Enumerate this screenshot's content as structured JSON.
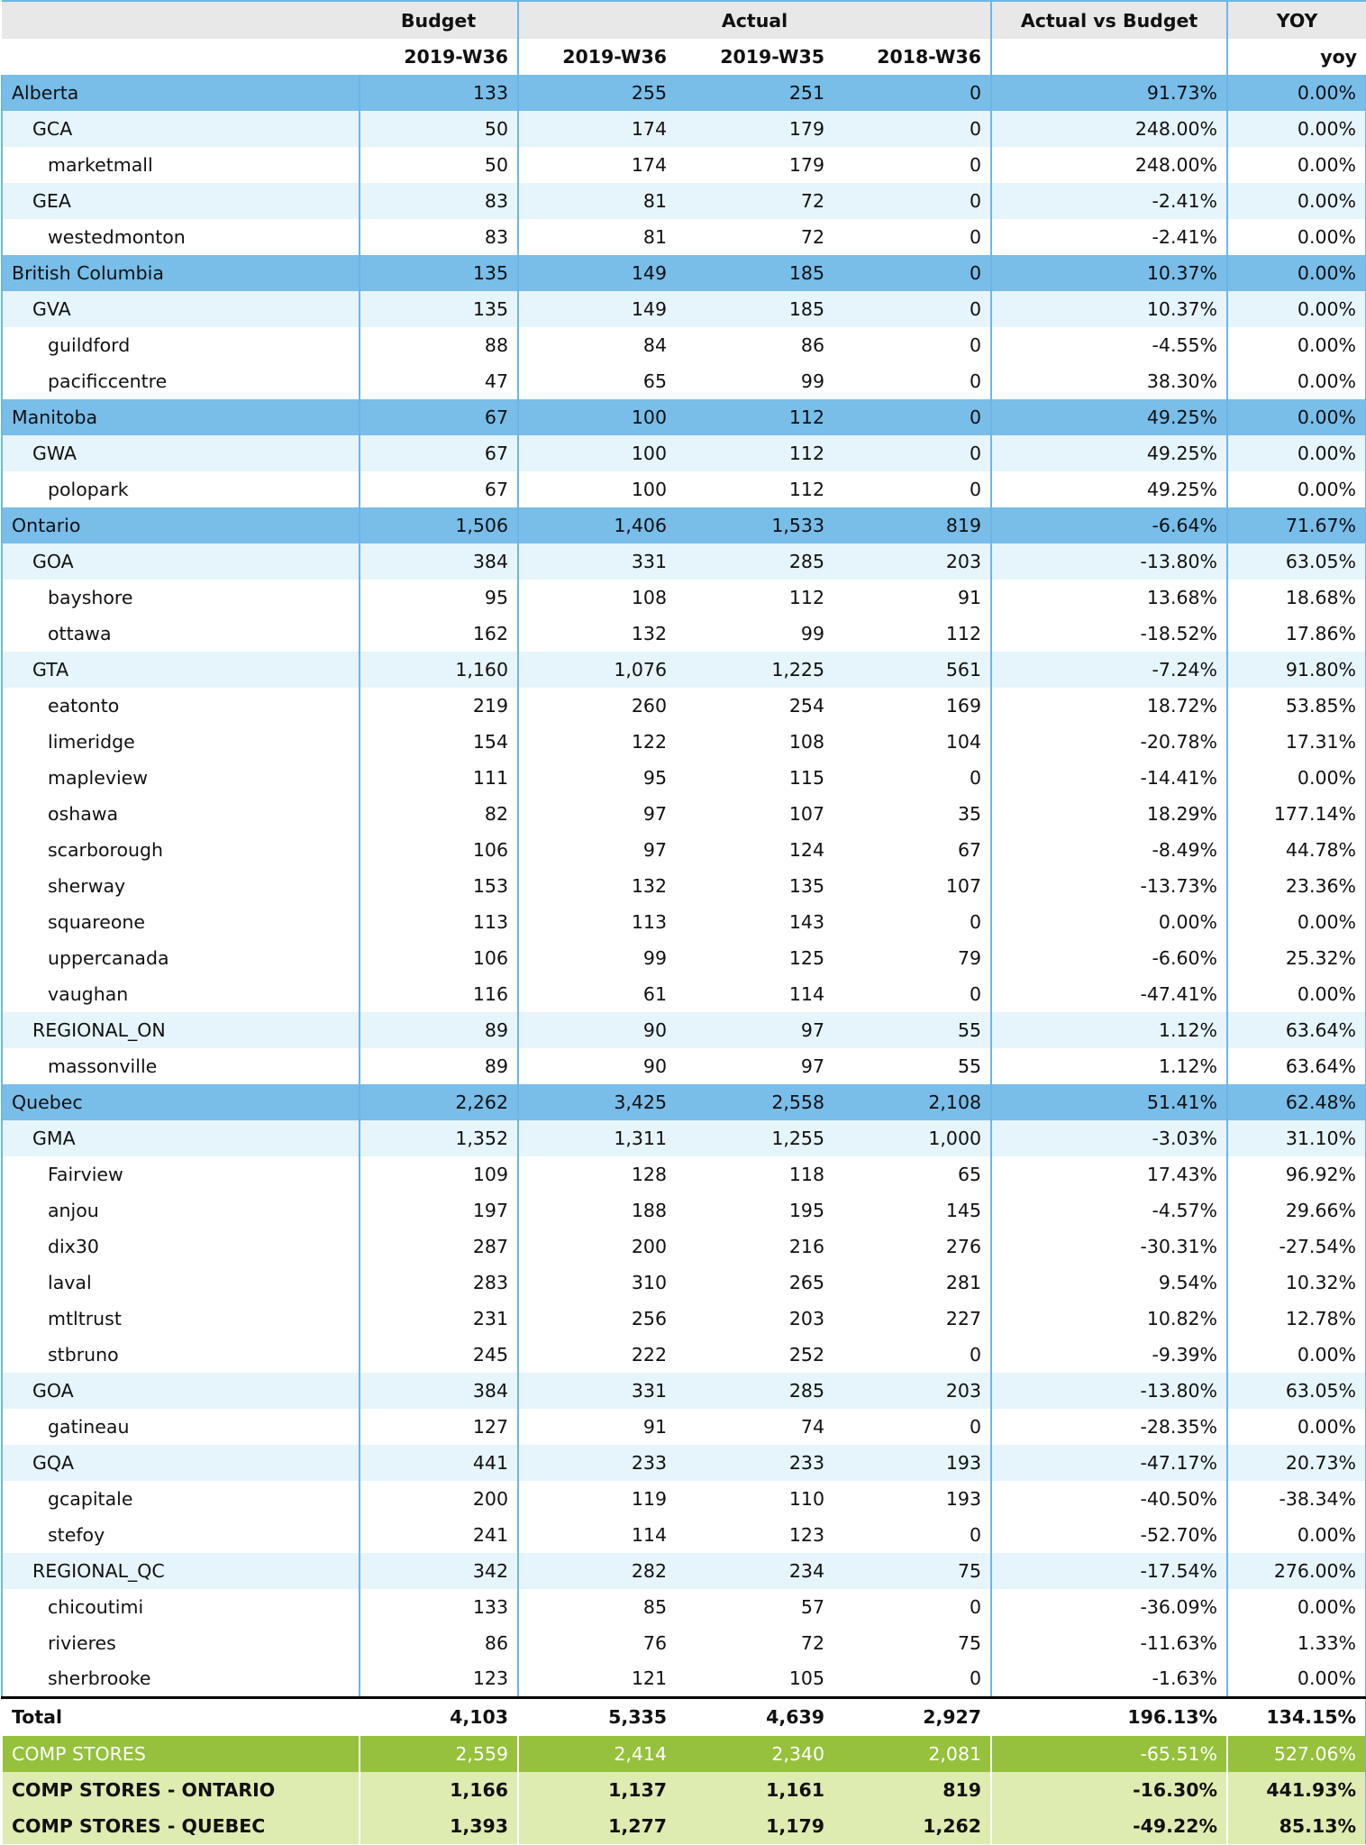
{
  "header": {
    "groups": [
      "",
      "Budget",
      "Actual",
      "Actual vs Budget",
      "YOY"
    ],
    "subheaders": [
      "",
      "2019-W36",
      "2019-W36",
      "2019-W35",
      "2018-W36",
      "",
      "yoy"
    ]
  },
  "rows": [
    {
      "level": "province",
      "name": "Alberta",
      "budget": "133",
      "w36": "255",
      "w35": "251",
      "ly": "0",
      "avb": "91.73%",
      "yoy": "0.00%"
    },
    {
      "level": "region",
      "name": "GCA",
      "budget": "50",
      "w36": "174",
      "w35": "179",
      "ly": "0",
      "avb": "248.00%",
      "yoy": "0.00%"
    },
    {
      "level": "store",
      "name": "marketmall",
      "budget": "50",
      "w36": "174",
      "w35": "179",
      "ly": "0",
      "avb": "248.00%",
      "yoy": "0.00%"
    },
    {
      "level": "region",
      "name": "GEA",
      "budget": "83",
      "w36": "81",
      "w35": "72",
      "ly": "0",
      "avb": "-2.41%",
      "yoy": "0.00%"
    },
    {
      "level": "store",
      "name": "westedmonton",
      "budget": "83",
      "w36": "81",
      "w35": "72",
      "ly": "0",
      "avb": "-2.41%",
      "yoy": "0.00%"
    },
    {
      "level": "province",
      "name": "British Columbia",
      "budget": "135",
      "w36": "149",
      "w35": "185",
      "ly": "0",
      "avb": "10.37%",
      "yoy": "0.00%"
    },
    {
      "level": "region",
      "name": "GVA",
      "budget": "135",
      "w36": "149",
      "w35": "185",
      "ly": "0",
      "avb": "10.37%",
      "yoy": "0.00%"
    },
    {
      "level": "store",
      "name": "guildford",
      "budget": "88",
      "w36": "84",
      "w35": "86",
      "ly": "0",
      "avb": "-4.55%",
      "yoy": "0.00%"
    },
    {
      "level": "store",
      "name": "pacificcentre",
      "budget": "47",
      "w36": "65",
      "w35": "99",
      "ly": "0",
      "avb": "38.30%",
      "yoy": "0.00%"
    },
    {
      "level": "province",
      "name": "Manitoba",
      "budget": "67",
      "w36": "100",
      "w35": "112",
      "ly": "0",
      "avb": "49.25%",
      "yoy": "0.00%"
    },
    {
      "level": "region",
      "name": "GWA",
      "budget": "67",
      "w36": "100",
      "w35": "112",
      "ly": "0",
      "avb": "49.25%",
      "yoy": "0.00%"
    },
    {
      "level": "store",
      "name": "polopark",
      "budget": "67",
      "w36": "100",
      "w35": "112",
      "ly": "0",
      "avb": "49.25%",
      "yoy": "0.00%"
    },
    {
      "level": "province",
      "name": "Ontario",
      "budget": "1,506",
      "w36": "1,406",
      "w35": "1,533",
      "ly": "819",
      "avb": "-6.64%",
      "yoy": "71.67%"
    },
    {
      "level": "region",
      "name": "GOA",
      "budget": "384",
      "w36": "331",
      "w35": "285",
      "ly": "203",
      "avb": "-13.80%",
      "yoy": "63.05%"
    },
    {
      "level": "store",
      "name": "bayshore",
      "budget": "95",
      "w36": "108",
      "w35": "112",
      "ly": "91",
      "avb": "13.68%",
      "yoy": "18.68%"
    },
    {
      "level": "store",
      "name": "ottawa",
      "budget": "162",
      "w36": "132",
      "w35": "99",
      "ly": "112",
      "avb": "-18.52%",
      "yoy": "17.86%"
    },
    {
      "level": "region",
      "name": "GTA",
      "budget": "1,160",
      "w36": "1,076",
      "w35": "1,225",
      "ly": "561",
      "avb": "-7.24%",
      "yoy": "91.80%"
    },
    {
      "level": "store",
      "name": "eatonto",
      "budget": "219",
      "w36": "260",
      "w35": "254",
      "ly": "169",
      "avb": "18.72%",
      "yoy": "53.85%"
    },
    {
      "level": "store",
      "name": "limeridge",
      "budget": "154",
      "w36": "122",
      "w35": "108",
      "ly": "104",
      "avb": "-20.78%",
      "yoy": "17.31%"
    },
    {
      "level": "store",
      "name": "mapleview",
      "budget": "111",
      "w36": "95",
      "w35": "115",
      "ly": "0",
      "avb": "-14.41%",
      "yoy": "0.00%"
    },
    {
      "level": "store",
      "name": "oshawa",
      "budget": "82",
      "w36": "97",
      "w35": "107",
      "ly": "35",
      "avb": "18.29%",
      "yoy": "177.14%"
    },
    {
      "level": "store",
      "name": "scarborough",
      "budget": "106",
      "w36": "97",
      "w35": "124",
      "ly": "67",
      "avb": "-8.49%",
      "yoy": "44.78%"
    },
    {
      "level": "store",
      "name": "sherway",
      "budget": "153",
      "w36": "132",
      "w35": "135",
      "ly": "107",
      "avb": "-13.73%",
      "yoy": "23.36%"
    },
    {
      "level": "store",
      "name": "squareone",
      "budget": "113",
      "w36": "113",
      "w35": "143",
      "ly": "0",
      "avb": "0.00%",
      "yoy": "0.00%"
    },
    {
      "level": "store",
      "name": "uppercanada",
      "budget": "106",
      "w36": "99",
      "w35": "125",
      "ly": "79",
      "avb": "-6.60%",
      "yoy": "25.32%"
    },
    {
      "level": "store",
      "name": "vaughan",
      "budget": "116",
      "w36": "61",
      "w35": "114",
      "ly": "0",
      "avb": "-47.41%",
      "yoy": "0.00%"
    },
    {
      "level": "region",
      "name": "REGIONAL_ON",
      "budget": "89",
      "w36": "90",
      "w35": "97",
      "ly": "55",
      "avb": "1.12%",
      "yoy": "63.64%"
    },
    {
      "level": "store",
      "name": "massonville",
      "budget": "89",
      "w36": "90",
      "w35": "97",
      "ly": "55",
      "avb": "1.12%",
      "yoy": "63.64%"
    },
    {
      "level": "province",
      "name": "Quebec",
      "budget": "2,262",
      "w36": "3,425",
      "w35": "2,558",
      "ly": "2,108",
      "avb": "51.41%",
      "yoy": "62.48%"
    },
    {
      "level": "region",
      "name": "GMA",
      "budget": "1,352",
      "w36": "1,311",
      "w35": "1,255",
      "ly": "1,000",
      "avb": "-3.03%",
      "yoy": "31.10%"
    },
    {
      "level": "store",
      "name": "Fairview",
      "budget": "109",
      "w36": "128",
      "w35": "118",
      "ly": "65",
      "avb": "17.43%",
      "yoy": "96.92%"
    },
    {
      "level": "store",
      "name": "anjou",
      "budget": "197",
      "w36": "188",
      "w35": "195",
      "ly": "145",
      "avb": "-4.57%",
      "yoy": "29.66%"
    },
    {
      "level": "store",
      "name": "dix30",
      "budget": "287",
      "w36": "200",
      "w35": "216",
      "ly": "276",
      "avb": "-30.31%",
      "yoy": "-27.54%"
    },
    {
      "level": "store",
      "name": "laval",
      "budget": "283",
      "w36": "310",
      "w35": "265",
      "ly": "281",
      "avb": "9.54%",
      "yoy": "10.32%"
    },
    {
      "level": "store",
      "name": "mtltrust",
      "budget": "231",
      "w36": "256",
      "w35": "203",
      "ly": "227",
      "avb": "10.82%",
      "yoy": "12.78%"
    },
    {
      "level": "store",
      "name": "stbruno",
      "budget": "245",
      "w36": "222",
      "w35": "252",
      "ly": "0",
      "avb": "-9.39%",
      "yoy": "0.00%"
    },
    {
      "level": "region",
      "name": "GOA",
      "budget": "384",
      "w36": "331",
      "w35": "285",
      "ly": "203",
      "avb": "-13.80%",
      "yoy": "63.05%"
    },
    {
      "level": "store",
      "name": "gatineau",
      "budget": "127",
      "w36": "91",
      "w35": "74",
      "ly": "0",
      "avb": "-28.35%",
      "yoy": "0.00%"
    },
    {
      "level": "region",
      "name": "GQA",
      "budget": "441",
      "w36": "233",
      "w35": "233",
      "ly": "193",
      "avb": "-47.17%",
      "yoy": "20.73%"
    },
    {
      "level": "store",
      "name": "gcapitale",
      "budget": "200",
      "w36": "119",
      "w35": "110",
      "ly": "193",
      "avb": "-40.50%",
      "yoy": "-38.34%"
    },
    {
      "level": "store",
      "name": "stefoy",
      "budget": "241",
      "w36": "114",
      "w35": "123",
      "ly": "0",
      "avb": "-52.70%",
      "yoy": "0.00%"
    },
    {
      "level": "region",
      "name": "REGIONAL_QC",
      "budget": "342",
      "w36": "282",
      "w35": "234",
      "ly": "75",
      "avb": "-17.54%",
      "yoy": "276.00%"
    },
    {
      "level": "store",
      "name": "chicoutimi",
      "budget": "133",
      "w36": "85",
      "w35": "57",
      "ly": "0",
      "avb": "-36.09%",
      "yoy": "0.00%"
    },
    {
      "level": "store",
      "name": "rivieres",
      "budget": "86",
      "w36": "76",
      "w35": "72",
      "ly": "75",
      "avb": "-11.63%",
      "yoy": "1.33%"
    },
    {
      "level": "store",
      "name": "sherbrooke",
      "budget": "123",
      "w36": "121",
      "w35": "105",
      "ly": "0",
      "avb": "-1.63%",
      "yoy": "0.00%"
    }
  ],
  "footer": [
    {
      "level": "total",
      "name": "Total",
      "budget": "4,103",
      "w36": "5,335",
      "w35": "4,639",
      "ly": "2,927",
      "avb": "196.13%",
      "yoy": "134.15%"
    },
    {
      "level": "comp",
      "name": "COMP STORES",
      "budget": "2,559",
      "w36": "2,414",
      "w35": "2,340",
      "ly": "2,081",
      "avb": "-65.51%",
      "yoy": "527.06%"
    },
    {
      "level": "compsub",
      "name": "COMP STORES - ONTARIO",
      "budget": "1,166",
      "w36": "1,137",
      "w35": "1,161",
      "ly": "819",
      "avb": "-16.30%",
      "yoy": "441.93%"
    },
    {
      "level": "compsub",
      "name": "COMP STORES - QUEBEC",
      "budget": "1,393",
      "w36": "1,277",
      "w35": "1,179",
      "ly": "1,262",
      "avb": "-49.22%",
      "yoy": "85.13%"
    }
  ]
}
